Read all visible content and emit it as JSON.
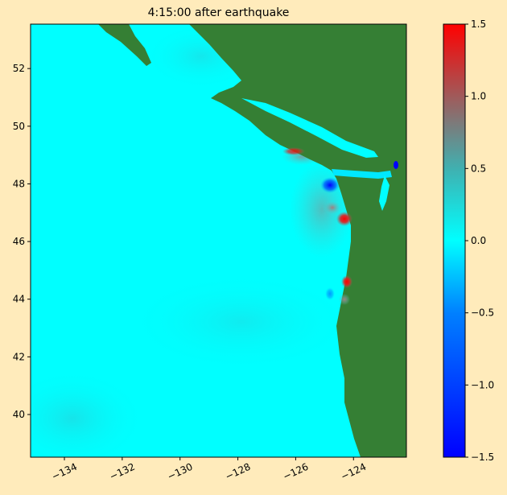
{
  "chart_data": {
    "type": "heatmap",
    "title": "4:15:00 after earthquake",
    "xlabel": "",
    "ylabel": "",
    "xlim": [
      -135.17,
      -122.17
    ],
    "ylim": [
      38.52,
      53.54
    ],
    "xticks": [
      -134,
      -132,
      -130,
      -128,
      -126,
      -124
    ],
    "xtick_labels": [
      "−134",
      "−132",
      "−130",
      "−128",
      "−126",
      "−124"
    ],
    "yticks": [
      40,
      42,
      44,
      46,
      48,
      50,
      52
    ],
    "ytick_labels": [
      "40",
      "42",
      "44",
      "46",
      "48",
      "50",
      "52"
    ],
    "colorbar": {
      "clim": [
        -1.5,
        1.5
      ],
      "ticks": [
        -1.5,
        -1.0,
        -0.5,
        0.0,
        0.5,
        1.0,
        1.5
      ],
      "tick_labels": [
        "−1.5",
        "−1.0",
        "−0.5",
        "0.0",
        "0.5",
        "1.0",
        "1.5"
      ],
      "colors": [
        {
          "value": -1.5,
          "color": "#0000ff"
        },
        {
          "value": -0.5,
          "color": "#0080ff"
        },
        {
          "value": 0.0,
          "color": "#00ffff"
        },
        {
          "value": 0.5,
          "color": "#40b0b0"
        },
        {
          "value": 1.0,
          "color": "#a05a5a"
        },
        {
          "value": 1.5,
          "color": "#ff0000"
        }
      ],
      "placement": "right"
    },
    "land_color": "#357f34",
    "background_color": "#ffebbb",
    "grid": false,
    "anomalies": [
      {
        "lon": -124.2,
        "lat": 46.8,
        "value": 1.5
      },
      {
        "lon": -124.2,
        "lat": 44.6,
        "value": 1.5
      },
      {
        "lon": -126.2,
        "lat": 48.9,
        "value": 1.2
      },
      {
        "lon": -124.7,
        "lat": 48.0,
        "value": -1.5
      },
      {
        "lon": -124.5,
        "lat": 47.1,
        "value": 0.8
      },
      {
        "lon": -124.4,
        "lat": 43.8,
        "value": 0.6
      }
    ]
  }
}
